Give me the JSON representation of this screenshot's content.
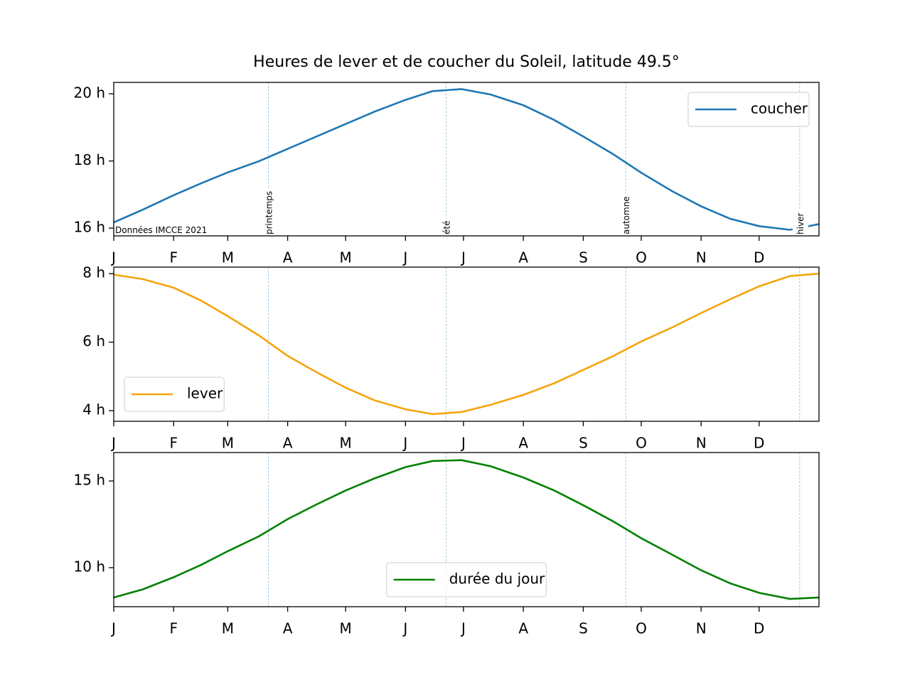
{
  "chart_data": [
    {
      "type": "line",
      "title": "Heures de lever et de coucher du Soleil, latitude 49.5°",
      "annotation": "Données IMCCE 2021",
      "seasons": [
        {
          "x": 80,
          "label": "printemps"
        },
        {
          "x": 172,
          "label": "été"
        },
        {
          "x": 265,
          "label": "automne"
        },
        {
          "x": 355,
          "label": "hiver"
        }
      ],
      "x": [
        0,
        15,
        31,
        45,
        59,
        75,
        90,
        105,
        120,
        135,
        151,
        165,
        180,
        195,
        212,
        228,
        243,
        258,
        273,
        289,
        304,
        319,
        334,
        350,
        365
      ],
      "series": [
        {
          "name": "coucher",
          "color": "#1f77b4",
          "values": [
            16.17,
            16.55,
            16.98,
            17.33,
            17.66,
            17.99,
            18.36,
            18.73,
            19.1,
            19.47,
            19.82,
            20.08,
            20.14,
            19.98,
            19.66,
            19.22,
            18.73,
            18.22,
            17.65,
            17.1,
            16.65,
            16.28,
            16.06,
            15.95,
            16.12
          ]
        }
      ],
      "legend": "upper right",
      "xlim": [
        0,
        365
      ],
      "xticks": [
        {
          "value": 0,
          "label": "J"
        },
        {
          "value": 31,
          "label": "F"
        },
        {
          "value": 59,
          "label": "M"
        },
        {
          "value": 90,
          "label": "A"
        },
        {
          "value": 120,
          "label": "M"
        },
        {
          "value": 151,
          "label": "J"
        },
        {
          "value": 181,
          "label": "J"
        },
        {
          "value": 212,
          "label": "A"
        },
        {
          "value": 243,
          "label": "S"
        },
        {
          "value": 273,
          "label": "O"
        },
        {
          "value": 304,
          "label": "N"
        },
        {
          "value": 334,
          "label": "D"
        }
      ],
      "ylim": [
        15.77,
        20.34
      ],
      "yticks": [
        {
          "value": 16,
          "label": "16 h"
        },
        {
          "value": 18,
          "label": "18 h"
        },
        {
          "value": 20,
          "label": "20 h"
        }
      ]
    },
    {
      "type": "line",
      "x": [
        0,
        15,
        31,
        45,
        59,
        75,
        90,
        105,
        120,
        135,
        151,
        165,
        180,
        195,
        212,
        228,
        243,
        258,
        273,
        289,
        304,
        319,
        334,
        350,
        365
      ],
      "series": [
        {
          "name": "lever",
          "color": "#f5a40c",
          "values": [
            7.97,
            7.84,
            7.59,
            7.22,
            6.76,
            6.2,
            5.6,
            5.12,
            4.67,
            4.3,
            4.04,
            3.9,
            3.96,
            4.17,
            4.46,
            4.8,
            5.19,
            5.58,
            6.02,
            6.43,
            6.85,
            7.25,
            7.63,
            7.93,
            8.0
          ]
        }
      ],
      "legend": "lower left",
      "xlim": [
        0,
        365
      ],
      "xticks": [
        {
          "value": 0,
          "label": "J"
        },
        {
          "value": 31,
          "label": "F"
        },
        {
          "value": 59,
          "label": "M"
        },
        {
          "value": 90,
          "label": "A"
        },
        {
          "value": 120,
          "label": "M"
        },
        {
          "value": 151,
          "label": "J"
        },
        {
          "value": 181,
          "label": "J"
        },
        {
          "value": 212,
          "label": "A"
        },
        {
          "value": 243,
          "label": "S"
        },
        {
          "value": 273,
          "label": "O"
        },
        {
          "value": 304,
          "label": "N"
        },
        {
          "value": 334,
          "label": "D"
        }
      ],
      "ylim": [
        3.69,
        8.19
      ],
      "yticks": [
        {
          "value": 4,
          "label": "4 h"
        },
        {
          "value": 6,
          "label": "6 h"
        },
        {
          "value": 8,
          "label": "8 h"
        }
      ]
    },
    {
      "type": "line",
      "x": [
        0,
        15,
        31,
        45,
        59,
        75,
        90,
        105,
        120,
        135,
        151,
        165,
        180,
        195,
        212,
        228,
        243,
        258,
        273,
        289,
        304,
        319,
        334,
        350,
        365
      ],
      "series": [
        {
          "name": "durée du jour",
          "color": "#008000",
          "values": [
            8.28,
            8.75,
            9.45,
            10.15,
            10.95,
            11.8,
            12.8,
            13.65,
            14.45,
            15.15,
            15.8,
            16.15,
            16.2,
            15.85,
            15.2,
            14.45,
            13.6,
            12.7,
            11.7,
            10.75,
            9.85,
            9.1,
            8.55,
            8.2,
            8.28
          ]
        }
      ],
      "legend": "lower center",
      "xlim": [
        0,
        365
      ],
      "xticks": [
        {
          "value": 0,
          "label": "J"
        },
        {
          "value": 31,
          "label": "F"
        },
        {
          "value": 59,
          "label": "M"
        },
        {
          "value": 90,
          "label": "A"
        },
        {
          "value": 120,
          "label": "M"
        },
        {
          "value": 151,
          "label": "J"
        },
        {
          "value": 181,
          "label": "J"
        },
        {
          "value": 212,
          "label": "A"
        },
        {
          "value": 243,
          "label": "S"
        },
        {
          "value": 273,
          "label": "O"
        },
        {
          "value": 304,
          "label": "N"
        },
        {
          "value": 334,
          "label": "D"
        }
      ],
      "ylim": [
        7.75,
        16.64
      ],
      "yticks": [
        {
          "value": 10,
          "label": "10 h"
        },
        {
          "value": 15,
          "label": "15 h"
        }
      ]
    }
  ]
}
